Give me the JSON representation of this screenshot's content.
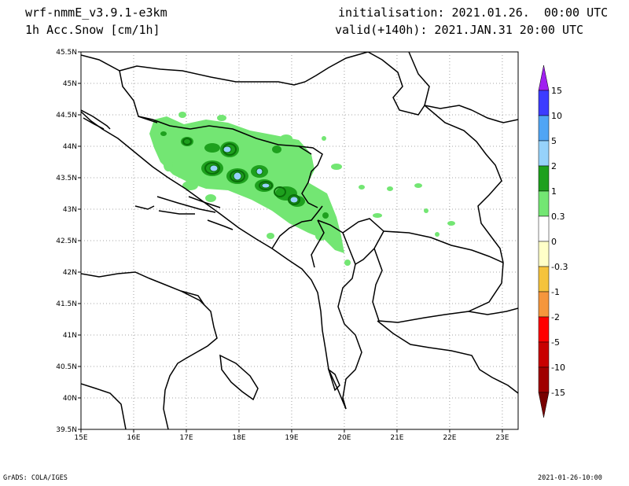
{
  "header": {
    "model": "wrf-nmmE_v3.9.1-e3km",
    "variable": "1h Acc.Snow [cm/1h]",
    "initialisation": "initialisation: 2021.01.26.  00:00 UTC",
    "valid": "valid(+140h): 2021.JAN.31 20:00 UTC"
  },
  "map": {
    "lat_labels": [
      "45.5N",
      "45N",
      "44.5N",
      "44N",
      "43.5N",
      "43N",
      "42.5N",
      "42N",
      "41.5N",
      "41N",
      "40.5N",
      "40N",
      "39.5N"
    ],
    "lon_labels": [
      "15E",
      "16E",
      "17E",
      "18E",
      "19E",
      "20E",
      "21E",
      "22E",
      "23E"
    ],
    "lon_range": [
      15,
      23.3
    ],
    "lat_range": [
      39.5,
      45.5
    ],
    "grid": "dotted",
    "colors": {
      "light_green": "#73e673",
      "green": "#1ea01e",
      "dark_green": "#0a6e0a",
      "light_blue": "#96d2fa",
      "blue": "#50a5f5"
    }
  },
  "colorbar": {
    "labels": [
      "15",
      "10",
      "5",
      "2",
      "1",
      "0.3",
      "0",
      "-0.3",
      "-1",
      "-2",
      "-5",
      "-10",
      "-15"
    ],
    "colors": [
      "#a020f0",
      "#3c3cff",
      "#50a5f5",
      "#96d2fa",
      "#1ea01e",
      "#73e673",
      "#ffffff",
      "#ffffc8",
      "#f5c33c",
      "#f5963c",
      "#ff0000",
      "#c80000",
      "#a00000",
      "#780000"
    ]
  },
  "footer": {
    "left": "GrADS: COLA/IGES",
    "right": "2021-01-26-10:00"
  }
}
